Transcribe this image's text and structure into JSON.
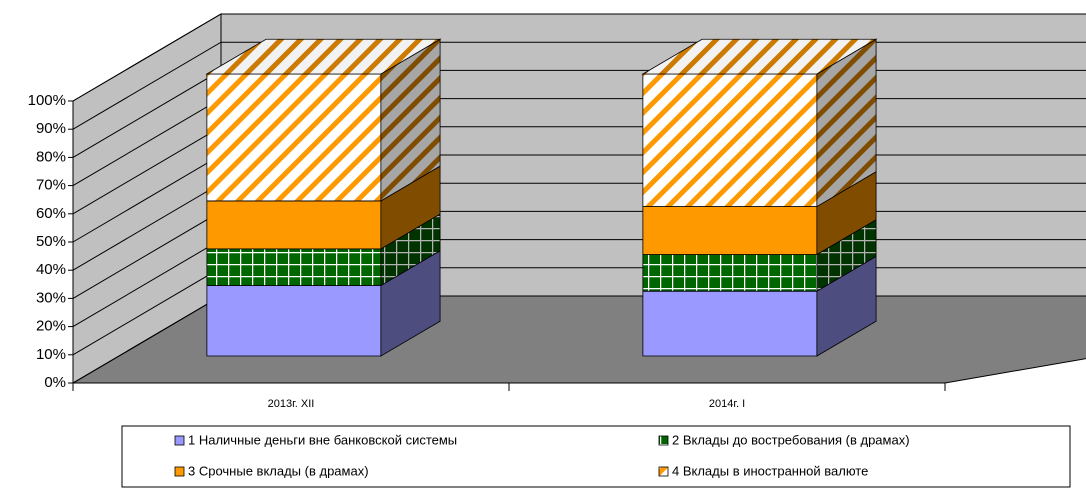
{
  "chart_data": {
    "type": "bar3d_stacked",
    "categories": [
      "2013г.  XII",
      "2014г. I"
    ],
    "series": [
      {
        "name": "1 Наличные деньги вне банковской системы",
        "color": "#9999ff",
        "pattern": "solid",
        "values": [
          25,
          23
        ]
      },
      {
        "name": "2 Вклады до востребования (в драмах)",
        "color": "#006600",
        "pattern": "grid",
        "values": [
          13,
          13
        ]
      },
      {
        "name": "3 Срочные вклады (в драмах)",
        "color": "#ff9900",
        "pattern": "solid",
        "values": [
          17,
          17
        ]
      },
      {
        "name": "4 Вклады в иностранной валюте",
        "color": "#ff9900",
        "pattern": "hatch",
        "values": [
          45,
          47
        ]
      }
    ],
    "ylim": [
      0,
      100
    ],
    "yticks": [
      {
        "value": 0,
        "label": "0%"
      },
      {
        "value": 10,
        "label": "10%"
      },
      {
        "value": 20,
        "label": "20%"
      },
      {
        "value": 30,
        "label": "30%"
      },
      {
        "value": 40,
        "label": "40%"
      },
      {
        "value": 50,
        "label": "50%"
      },
      {
        "value": 60,
        "label": "60%"
      },
      {
        "value": 70,
        "label": "70%"
      },
      {
        "value": 80,
        "label": "80%"
      },
      {
        "value": 90,
        "label": "90%"
      },
      {
        "value": 100,
        "label": "100%"
      }
    ],
    "grid": true,
    "legend": "bottom"
  }
}
